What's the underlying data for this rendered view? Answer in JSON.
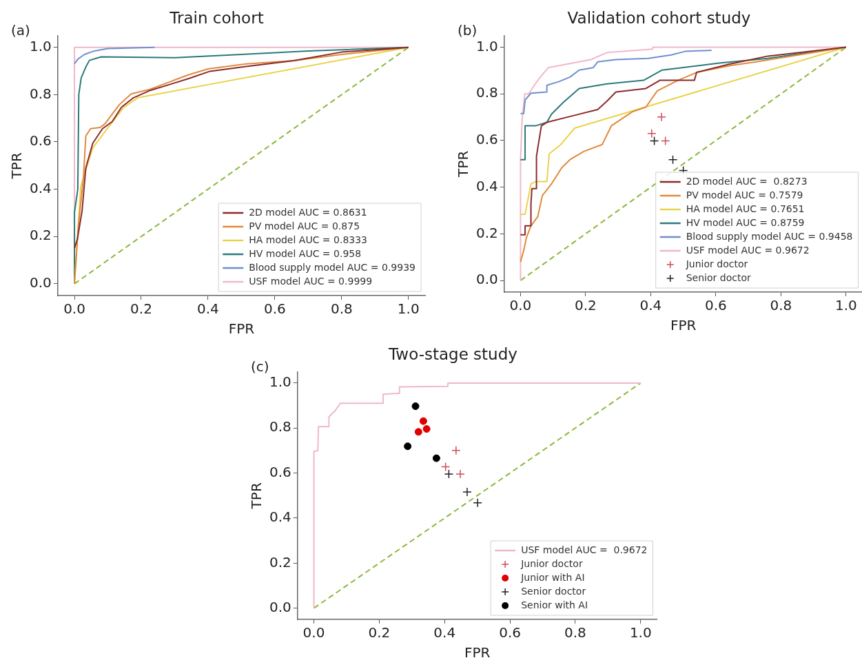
{
  "chart_data": [
    {
      "type": "line",
      "title": "Train cohort",
      "xlabel": "FPR",
      "ylabel": "TPR",
      "annotations": [
        "(a)"
      ],
      "legend": "bottom right",
      "xlim": [
        -0.05,
        1.05
      ],
      "ylim": [
        -0.05,
        1.05
      ],
      "xticks": [
        {
          "value": 0,
          "label": "0.0"
        },
        {
          "value": 0.2,
          "label": "0.2"
        },
        {
          "value": 0.4,
          "label": "0.4"
        },
        {
          "value": 0.6,
          "label": "0.6"
        },
        {
          "value": 0.8,
          "label": "0.8"
        },
        {
          "value": 1,
          "label": "1.0"
        }
      ],
      "yticks": [
        {
          "value": 0,
          "label": "0.0"
        },
        {
          "value": 0.2,
          "label": "0.2"
        },
        {
          "value": 0.4,
          "label": "0.4"
        },
        {
          "value": 0.6,
          "label": "0.6"
        },
        {
          "value": 0.8,
          "label": "0.8"
        },
        {
          "value": 1,
          "label": "1.0"
        }
      ],
      "series": [
        {
          "name": "2D model AUC = 0.8631",
          "color": "#8b2a2a",
          "x": [
            0,
            0.009,
            0.023,
            0.034,
            0.055,
            0.084,
            0.113,
            0.141,
            0.177,
            0.227,
            0.285,
            0.342,
            0.406,
            0.514,
            0.657,
            0.8,
            1
          ],
          "values": [
            0.15,
            0.19,
            0.31,
            0.49,
            0.595,
            0.656,
            0.686,
            0.747,
            0.787,
            0.818,
            0.843,
            0.868,
            0.899,
            0.919,
            0.944,
            0.98,
            1
          ]
        },
        {
          "name": "PV model AUC = 0.875",
          "color": "#e08a3a",
          "x": [
            0,
            0.012,
            0.027,
            0.034,
            0.048,
            0.077,
            0.091,
            0.134,
            0.17,
            0.227,
            0.285,
            0.342,
            0.4,
            0.514,
            0.657,
            0.8,
            1
          ],
          "values": [
            0,
            0.25,
            0.45,
            0.625,
            0.656,
            0.661,
            0.676,
            0.757,
            0.803,
            0.823,
            0.854,
            0.884,
            0.909,
            0.93,
            0.944,
            0.97,
            1
          ]
        },
        {
          "name": "HA model AUC = 0.8333",
          "color": "#e8d44a",
          "x": [
            0,
            0.019,
            0.055,
            0.098,
            0.148,
            0.19,
            1
          ],
          "values": [
            0,
            0.413,
            0.575,
            0.656,
            0.747,
            0.787,
            1
          ]
        },
        {
          "name": "HV model AUC = 0.958",
          "color": "#2a7a78",
          "x": [
            0,
            0,
            0.01,
            0.013,
            0.02,
            0.035,
            0.045,
            0.08,
            0.3,
            0.5,
            0.7,
            1
          ],
          "values": [
            0,
            0.3,
            0.4,
            0.8,
            0.87,
            0.92,
            0.945,
            0.96,
            0.956,
            0.97,
            0.985,
            1
          ]
        },
        {
          "name": "Blood supply model AUC = 0.9939",
          "color": "#6f8fd0",
          "x": [
            0,
            0.01,
            0.03,
            0.06,
            0.1,
            0.24
          ],
          "values": [
            0.93,
            0.95,
            0.97,
            0.985,
            0.995,
            1
          ]
        },
        {
          "name": "USF model AUC = 0.9999",
          "color": "#f0b8c8",
          "x": [
            0,
            0,
            1
          ],
          "values": [
            0,
            1,
            1
          ]
        },
        {
          "color": "#8ab83a",
          "line_style": "dashed",
          "x": [
            0,
            1
          ],
          "values": [
            0,
            1
          ]
        }
      ]
    },
    {
      "type": "line",
      "title": "Validation cohort study",
      "xlabel": "FPR",
      "ylabel": "TPR",
      "annotations": [
        "(b)"
      ],
      "legend": "bottom right",
      "xlim": [
        -0.05,
        1.05
      ],
      "ylim": [
        -0.05,
        1.05
      ],
      "xticks": [
        {
          "value": 0,
          "label": "0.0"
        },
        {
          "value": 0.2,
          "label": "0.2"
        },
        {
          "value": 0.4,
          "label": "0.4"
        },
        {
          "value": 0.6,
          "label": "0.6"
        },
        {
          "value": 0.8,
          "label": "0.8"
        },
        {
          "value": 1,
          "label": "1.0"
        }
      ],
      "yticks": [
        {
          "value": 0,
          "label": "0.0"
        },
        {
          "value": 0.2,
          "label": "0.2"
        },
        {
          "value": 0.4,
          "label": "0.4"
        },
        {
          "value": 0.6,
          "label": "0.6"
        },
        {
          "value": 0.8,
          "label": "0.8"
        },
        {
          "value": 1,
          "label": "1.0"
        }
      ],
      "series": [
        {
          "name": "2D model AUC =  0.8273",
          "color": "#8b2a2a",
          "x": [
            0,
            0.014,
            0.014,
            0.032,
            0.032,
            0.035,
            0.049,
            0.049,
            0.064,
            0.081,
            0.166,
            0.237,
            0.265,
            0.293,
            0.385,
            0.428,
            0.534,
            0.541,
            0.64,
            0.76,
            1
          ],
          "values": [
            0.196,
            0.196,
            0.234,
            0.234,
            0.329,
            0.394,
            0.394,
            0.533,
            0.663,
            0.678,
            0.708,
            0.733,
            0.768,
            0.808,
            0.823,
            0.858,
            0.858,
            0.892,
            0.927,
            0.962,
            1
          ]
        },
        {
          "name": "PV model AUC = 0.7579",
          "color": "#e08a3a",
          "x": [
            0,
            0.011,
            0.018,
            0.032,
            0.053,
            0.067,
            0.095,
            0.127,
            0.152,
            0.194,
            0.251,
            0.279,
            0.343,
            0.385,
            0.42,
            0.484,
            0.541,
            0.647,
            0.724,
            1
          ],
          "values": [
            0.08,
            0.135,
            0.184,
            0.234,
            0.274,
            0.364,
            0.414,
            0.484,
            0.518,
            0.553,
            0.583,
            0.663,
            0.723,
            0.743,
            0.813,
            0.858,
            0.892,
            0.922,
            0.937,
            1
          ]
        },
        {
          "name": "HA model AUC = 0.7651",
          "color": "#e8d44a",
          "x": [
            0,
            0.014,
            0.032,
            0.046,
            0.081,
            0.088,
            0.124,
            0.166,
            1
          ],
          "values": [
            0.284,
            0.284,
            0.414,
            0.424,
            0.424,
            0.543,
            0.583,
            0.653,
            1
          ]
        },
        {
          "name": "HV model AUC = 0.8759",
          "color": "#2a7a78",
          "x": [
            0,
            0.014,
            0.014,
            0.046,
            0.081,
            0.095,
            0.131,
            0.18,
            0.265,
            0.378,
            0.435,
            0.611,
            0.76,
            1
          ],
          "values": [
            0.518,
            0.518,
            0.663,
            0.663,
            0.678,
            0.713,
            0.763,
            0.823,
            0.843,
            0.858,
            0.902,
            0.932,
            0.952,
            1
          ]
        },
        {
          "name": "Blood supply model AUC = 0.9458",
          "color": "#6f8fd0",
          "x": [
            0,
            0.01,
            0.014,
            0.032,
            0.081,
            0.081,
            0.117,
            0.152,
            0.18,
            0.223,
            0.237,
            0.293,
            0.392,
            0.463,
            0.505,
            0.587
          ],
          "values": [
            0.716,
            0.716,
            0.774,
            0.803,
            0.808,
            0.837,
            0.852,
            0.872,
            0.902,
            0.912,
            0.937,
            0.947,
            0.952,
            0.967,
            0.982,
            0.987
          ]
        },
        {
          "name": "USF model AUC = 0.9672",
          "color": "#f0b8c8",
          "x": [
            0,
            0,
            0.005,
            0.013,
            0.025,
            0.049,
            0.067,
            0.085,
            0.216,
            0.265,
            0.406,
            0.406,
            1
          ],
          "values": [
            0,
            0.52,
            0.69,
            0.8,
            0.8,
            0.85,
            0.882,
            0.912,
            0.947,
            0.977,
            0.992,
            1,
            1
          ]
        },
        {
          "name": "Junior doctor",
          "type": "scatter",
          "marker": "cross",
          "color": "#d04a5a",
          "x": [
            0.433,
            0.403,
            0.445
          ],
          "values": [
            0.701,
            0.63,
            0.598
          ]
        },
        {
          "name": "Senior doctor",
          "type": "scatter",
          "marker": "cross",
          "color": "#202020",
          "x": [
            0.411,
            0.468,
            0.5
          ],
          "values": [
            0.598,
            0.518,
            0.471
          ]
        },
        {
          "color": "#8ab83a",
          "line_style": "dashed",
          "x": [
            0,
            1
          ],
          "values": [
            0,
            1
          ]
        }
      ]
    },
    {
      "type": "line",
      "title": "Two-stage study",
      "xlabel": "FPR",
      "ylabel": "TPR",
      "annotations": [
        "(c)"
      ],
      "legend": "bottom right",
      "xlim": [
        -0.05,
        1.05
      ],
      "ylim": [
        -0.05,
        1.05
      ],
      "xticks": [
        {
          "value": 0,
          "label": "0.0"
        },
        {
          "value": 0.2,
          "label": "0.2"
        },
        {
          "value": 0.4,
          "label": "0.4"
        },
        {
          "value": 0.6,
          "label": "0.6"
        },
        {
          "value": 0.8,
          "label": "0.8"
        },
        {
          "value": 1,
          "label": "1.0"
        }
      ],
      "yticks": [
        {
          "value": 0,
          "label": "0.0"
        },
        {
          "value": 0.2,
          "label": "0.2"
        },
        {
          "value": 0.4,
          "label": "0.4"
        },
        {
          "value": 0.6,
          "label": "0.6"
        },
        {
          "value": 0.8,
          "label": "0.8"
        },
        {
          "value": 1,
          "label": "1.0"
        }
      ],
      "series": [
        {
          "name": "USF model AUC =  0.9672",
          "color": "#f0b8c8",
          "x": [
            0,
            0,
            0.012,
            0.014,
            0.046,
            0.046,
            0.064,
            0.081,
            0.212,
            0.212,
            0.262,
            0.262,
            0.41,
            0.41,
            1
          ],
          "values": [
            0,
            0.696,
            0.7,
            0.806,
            0.806,
            0.85,
            0.875,
            0.91,
            0.91,
            0.95,
            0.955,
            0.983,
            0.985,
            1,
            1
          ]
        },
        {
          "name": "Junior doctor",
          "type": "scatter",
          "marker": "cross",
          "color": "#d04a5a",
          "x": [
            0.435,
            0.403,
            0.448
          ],
          "values": [
            0.701,
            0.628,
            0.596
          ]
        },
        {
          "name": "Junior with AI",
          "type": "scatter",
          "marker": "circle",
          "color": "#e00000",
          "x": [
            0.335,
            0.345,
            0.32
          ],
          "values": [
            0.831,
            0.796,
            0.783
          ]
        },
        {
          "name": "Senior doctor",
          "type": "scatter",
          "marker": "cross",
          "color": "#202020",
          "x": [
            0.413,
            0.469,
            0.501
          ],
          "values": [
            0.596,
            0.516,
            0.468
          ]
        },
        {
          "name": "Senior with AI",
          "type": "scatter",
          "marker": "circle",
          "color": "#000000",
          "x": [
            0.311,
            0.287,
            0.375
          ],
          "values": [
            0.897,
            0.719,
            0.666
          ]
        },
        {
          "color": "#8ab83a",
          "line_style": "dashed",
          "x": [
            0,
            1
          ],
          "values": [
            0,
            1
          ]
        }
      ]
    }
  ]
}
